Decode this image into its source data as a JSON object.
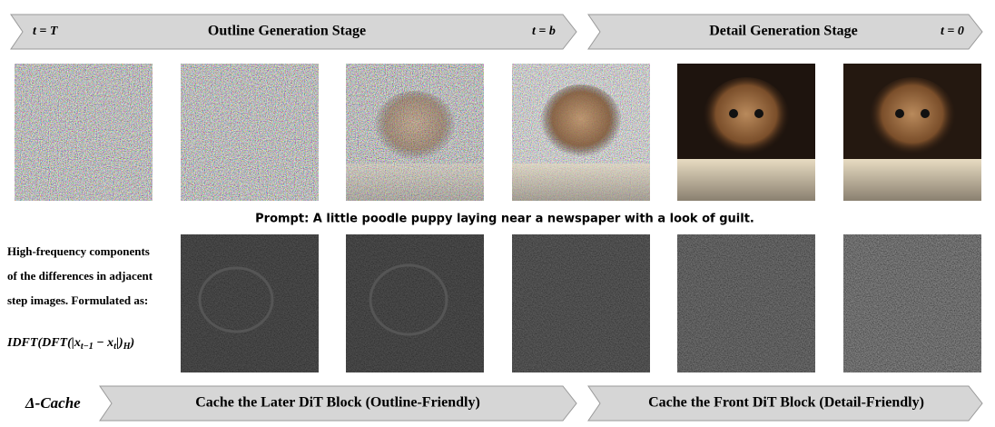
{
  "stages": [
    {
      "start": "t = T",
      "label": "Outline Generation Stage",
      "end": "t = b"
    },
    {
      "label": "Detail Generation Stage",
      "end": "t = 0"
    }
  ],
  "prompt": "Prompt: A little poodle puppy laying near a newspaper with a look of guilt.",
  "description": {
    "lines": [
      "High-frequency components",
      "of the differences in adjacent",
      "step images. Formulated as:"
    ],
    "formula": [
      "IDFT(DFT(|x",
      "t−1",
      " − x",
      "t",
      "|)",
      "H",
      ")"
    ]
  },
  "method": {
    "name": "Δ-Cache",
    "strategies": [
      "Cache the Later DiT Block (Outline-Friendly)",
      "Cache the Front DiT Block (Detail-Friendly)"
    ]
  }
}
